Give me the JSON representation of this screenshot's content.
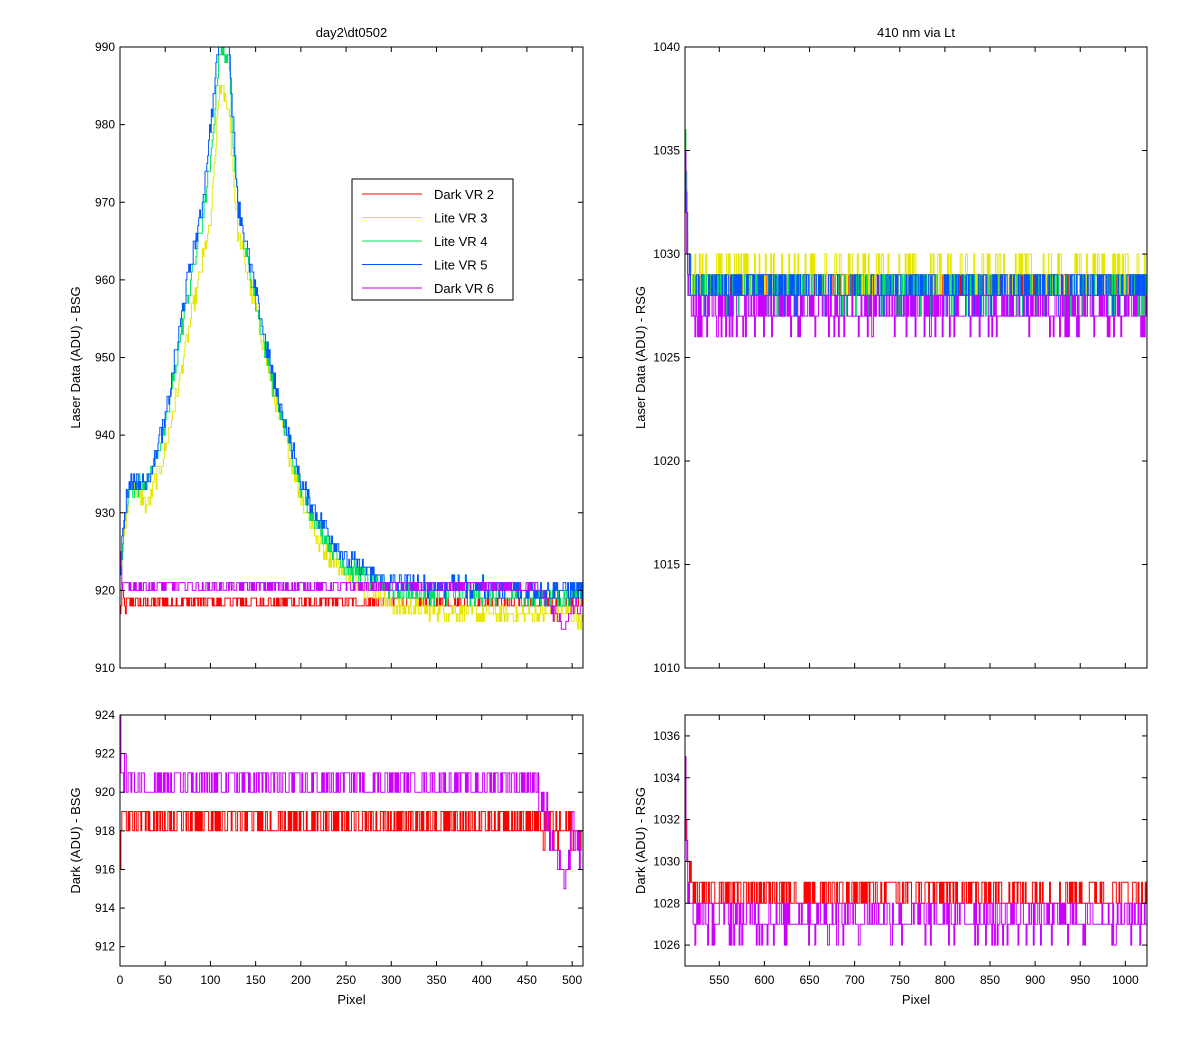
{
  "titles": {
    "left": "day2\\dt0502",
    "right": "410 nm via Lt"
  },
  "colors": {
    "Dark VR 2": "#ff0000",
    "Lite VR 3": "#e6e600",
    "Lite VR 4": "#00e060",
    "Lite VR 5": "#0055ff",
    "Dark VR 6": "#cc00ff"
  },
  "chart_data": [
    {
      "id": "top-left",
      "type": "line",
      "title": "day2\\dt0502",
      "xlabel": "",
      "ylabel": "Laser Data (ADU) - BSG",
      "xlim": [
        0,
        512
      ],
      "ylim": [
        910,
        990
      ],
      "xticks": [
        0,
        50,
        100,
        150,
        200,
        250,
        300,
        350,
        400,
        450,
        500
      ],
      "yticks": [
        910,
        920,
        930,
        940,
        950,
        960,
        970,
        980,
        990
      ],
      "show_xtick_labels": false,
      "legend": {
        "location": "upper-right-inside",
        "entries": [
          "Dark VR 2",
          "Lite VR 3",
          "Lite VR 4",
          "Lite VR 5",
          "Dark VR 6"
        ]
      },
      "series": [
        {
          "name": "Dark VR 2",
          "x": [
            0,
            2,
            5,
            10,
            20,
            50,
            100,
            150,
            200,
            250,
            300,
            350,
            400,
            450,
            500,
            512
          ],
          "y": [
            917,
            920,
            918,
            918.5,
            918.5,
            918.5,
            918.5,
            918.5,
            918.5,
            918.5,
            918.5,
            918.5,
            918.5,
            918.5,
            918.5,
            918.5
          ],
          "noise": 1
        },
        {
          "name": "Lite VR 3",
          "x": [
            0,
            5,
            10,
            30,
            50,
            70,
            90,
            100,
            110,
            120,
            130,
            150,
            170,
            200,
            220,
            250,
            280,
            300,
            350,
            400,
            450,
            500,
            512
          ],
          "y": [
            922,
            927,
            934,
            931,
            938,
            950,
            962,
            967,
            985,
            982,
            966,
            956,
            945,
            932,
            926,
            922,
            920,
            918,
            917.5,
            917,
            917,
            917,
            916
          ],
          "noise": 1.2
        },
        {
          "name": "Lite VR 4",
          "x": [
            0,
            5,
            10,
            30,
            50,
            70,
            90,
            100,
            110,
            120,
            130,
            150,
            170,
            200,
            220,
            250,
            280,
            300,
            350,
            400,
            450,
            500,
            512
          ],
          "y": [
            922,
            929,
            933,
            934,
            941,
            955,
            967,
            975,
            990,
            988,
            969,
            957,
            946,
            933,
            928,
            923,
            921,
            920,
            919.5,
            919.5,
            919,
            919,
            919
          ],
          "noise": 1.2
        },
        {
          "name": "Lite VR 5",
          "x": [
            0,
            5,
            10,
            30,
            50,
            70,
            90,
            100,
            110,
            120,
            130,
            150,
            170,
            200,
            220,
            250,
            280,
            300,
            350,
            400,
            450,
            500,
            512
          ],
          "y": [
            923,
            930,
            934,
            934,
            942,
            957,
            969,
            980,
            992,
            991,
            970,
            958,
            947,
            934,
            929,
            924,
            922,
            921,
            920.5,
            920.5,
            920,
            920,
            920
          ],
          "noise": 1.2
        },
        {
          "name": "Dark VR 6",
          "x": [
            0,
            2,
            5,
            20,
            100,
            200,
            300,
            400,
            460,
            470,
            480,
            490,
            500,
            512
          ],
          "y": [
            924,
            921,
            920.5,
            920.5,
            920.5,
            920.5,
            920.5,
            920.5,
            920.5,
            919,
            917,
            915,
            918,
            917
          ],
          "noise": 1
        }
      ]
    },
    {
      "id": "top-right",
      "type": "line",
      "title": "410 nm via Lt",
      "xlabel": "",
      "ylabel": "Laser Data (ADU) - RSG",
      "xlim": [
        512,
        1024
      ],
      "ylim": [
        1010,
        1040
      ],
      "xticks": [
        550,
        600,
        650,
        700,
        750,
        800,
        850,
        900,
        950,
        1000
      ],
      "yticks": [
        1010,
        1015,
        1020,
        1025,
        1030,
        1035,
        1040
      ],
      "show_xtick_labels": false,
      "series": [
        {
          "name": "Dark VR 2",
          "x": [
            512,
            513,
            515,
            520,
            1024
          ],
          "y": [
            1035.5,
            1032,
            1029,
            1028.5,
            1028.5
          ],
          "noise": 1
        },
        {
          "name": "Lite VR 3",
          "x": [
            512,
            515,
            520,
            1024
          ],
          "y": [
            1035,
            1029,
            1028.8,
            1028.8
          ],
          "noise": 1.2
        },
        {
          "name": "Lite VR 4",
          "x": [
            512,
            515,
            520,
            1024
          ],
          "y": [
            1035,
            1029,
            1028.2,
            1028.2
          ],
          "noise": 1
        },
        {
          "name": "Lite VR 5",
          "x": [
            512,
            515,
            520,
            1024
          ],
          "y": [
            1035,
            1029,
            1028.3,
            1028.3
          ],
          "noise": 1
        },
        {
          "name": "Dark VR 6",
          "x": [
            512,
            513,
            515,
            520,
            1024
          ],
          "y": [
            1035,
            1032,
            1028,
            1027.3,
            1027.3
          ],
          "noise": 1
        }
      ]
    },
    {
      "id": "bottom-left",
      "type": "line",
      "title": "",
      "xlabel": "Pixel",
      "ylabel": "Dark (ADU) - BSG",
      "xlim": [
        0,
        512
      ],
      "ylim": [
        911,
        924
      ],
      "xticks": [
        0,
        50,
        100,
        150,
        200,
        250,
        300,
        350,
        400,
        450,
        500
      ],
      "yticks": [
        912,
        914,
        916,
        918,
        920,
        922,
        924
      ],
      "show_xtick_labels": true,
      "series": [
        {
          "name": "Dark VR 2",
          "x": [
            0,
            2,
            5,
            20,
            100,
            200,
            300,
            400,
            460,
            470,
            480,
            500,
            512
          ],
          "y": [
            917,
            920,
            918.5,
            918.5,
            918.5,
            918.5,
            918.5,
            918.5,
            918.5,
            918,
            918,
            918,
            918
          ],
          "noise": 1
        },
        {
          "name": "Dark VR 6",
          "x": [
            0,
            1,
            3,
            10,
            100,
            200,
            300,
            400,
            460,
            470,
            480,
            490,
            500,
            512
          ],
          "y": [
            924,
            922,
            921,
            920.5,
            920.5,
            920.5,
            920.5,
            920.5,
            920.5,
            919,
            917,
            915,
            918,
            917
          ],
          "noise": 1
        }
      ]
    },
    {
      "id": "bottom-right",
      "type": "line",
      "title": "",
      "xlabel": "Pixel",
      "ylabel": "Dark (ADU) - RSG",
      "xlim": [
        512,
        1024
      ],
      "ylim": [
        1025,
        1037
      ],
      "xticks": [
        550,
        600,
        650,
        700,
        750,
        800,
        850,
        900,
        950,
        1000
      ],
      "yticks": [
        1026,
        1028,
        1030,
        1032,
        1034,
        1036
      ],
      "show_xtick_labels": true,
      "series": [
        {
          "name": "Dark VR 2",
          "x": [
            512,
            513,
            515,
            520,
            1024
          ],
          "y": [
            1035.5,
            1032,
            1029.5,
            1028.5,
            1028.5
          ],
          "noise": 1
        },
        {
          "name": "Dark VR 6",
          "x": [
            512,
            513,
            515,
            520,
            1024
          ],
          "y": [
            1035,
            1032,
            1028,
            1027.3,
            1027.3
          ],
          "noise": 1
        }
      ]
    }
  ]
}
